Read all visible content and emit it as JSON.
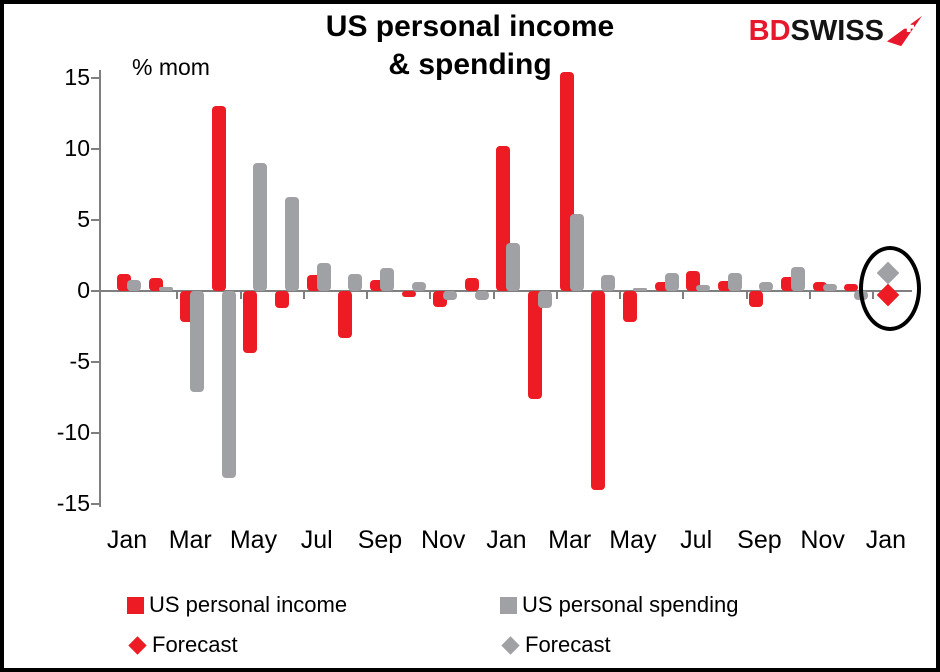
{
  "header": {
    "title_line1": "US personal income",
    "title_line2": "& spending",
    "logo": {
      "part1": "BD",
      "part2": "SWISS",
      "arrow_icon": "red-pennant-white-cross"
    }
  },
  "chart_data": {
    "type": "bar",
    "title": "US personal income & spending",
    "y_axis_label": "% mom",
    "ylim": [
      -15,
      15
    ],
    "yticks": [
      15,
      10,
      5,
      0,
      -5,
      -10,
      -15
    ],
    "grid": false,
    "legend_position": "bottom",
    "categories": [
      "Jan",
      "",
      "Mar",
      "",
      "May",
      "",
      "Jul",
      "",
      "Sep",
      "",
      "Nov",
      "",
      "Jan",
      "",
      "Mar",
      "",
      "May",
      "",
      "Jul",
      "",
      "Sep",
      "",
      "Nov",
      "",
      "Jan"
    ],
    "series": [
      {
        "name": "US personal income",
        "color": "#ED1C24",
        "values": [
          1.2,
          0.9,
          -2.2,
          13.0,
          -4.4,
          -1.2,
          1.1,
          -3.3,
          0.8,
          -0.4,
          -1.1,
          0.9,
          10.2,
          -7.6,
          15.4,
          -14.0,
          -2.2,
          0.6,
          1.4,
          0.7,
          -1.1,
          1.0,
          0.6,
          0.5,
          null
        ]
      },
      {
        "name": "US personal spending",
        "color": "#9FA1A4",
        "values": [
          0.8,
          0.3,
          -7.1,
          -13.2,
          9.0,
          6.6,
          2.0,
          1.2,
          1.6,
          0.6,
          -0.6,
          -0.6,
          3.4,
          -1.2,
          5.4,
          1.1,
          0.2,
          1.3,
          0.4,
          1.3,
          0.6,
          1.7,
          0.5,
          -0.6,
          null
        ]
      }
    ],
    "forecast_points": [
      {
        "name": "Forecast",
        "series": "US personal income",
        "month_index": 24,
        "value": -0.3,
        "color": "#ED1C24",
        "marker": "diamond"
      },
      {
        "name": "Forecast",
        "series": "US personal spending",
        "month_index": 24,
        "value": 1.3,
        "color": "#9FA1A4",
        "marker": "diamond"
      }
    ],
    "annotation": {
      "shape": "ellipse",
      "purpose": "highlights forecast diamonds at last month"
    },
    "axis_color": "#7f7f7f"
  },
  "legend": {
    "items": [
      {
        "label": "US personal income",
        "swatch": "square",
        "color": "#ED1C24"
      },
      {
        "label": "US personal spending",
        "swatch": "square",
        "color": "#9FA1A4"
      },
      {
        "label": "Forecast",
        "swatch": "diamond",
        "color": "#ED1C24"
      },
      {
        "label": "Forecast",
        "swatch": "diamond",
        "color": "#9FA1A4"
      }
    ]
  }
}
